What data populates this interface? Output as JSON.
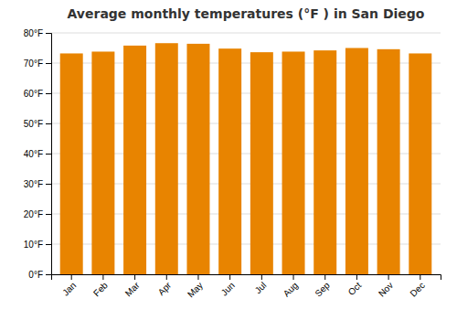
{
  "chart_data": {
    "type": "bar",
    "title": "Average monthly temperatures (°F ) in San Diego",
    "categories": [
      "Jan",
      "Feb",
      "Mar",
      "Apr",
      "May",
      "Jun",
      "Jul",
      "Aug",
      "Sep",
      "Oct",
      "Nov",
      "Dec"
    ],
    "values": [
      73.2,
      73.8,
      75.8,
      76.6,
      76.4,
      74.8,
      73.6,
      73.8,
      74.2,
      75.0,
      74.6,
      73.2
    ],
    "color": "#E88400",
    "ylim": [
      0,
      80
    ],
    "yticks": [
      {
        "value": 0,
        "label": "0°F"
      },
      {
        "value": 10,
        "label": "10°F"
      },
      {
        "value": 20,
        "label": "20°F"
      },
      {
        "value": 30,
        "label": "30°F"
      },
      {
        "value": 40,
        "label": "40°F"
      },
      {
        "value": 50,
        "label": "50°F"
      },
      {
        "value": 60,
        "label": "60°F"
      },
      {
        "value": 70,
        "label": "70°F"
      },
      {
        "value": 80,
        "label": "80°F"
      }
    ],
    "grid": true
  }
}
